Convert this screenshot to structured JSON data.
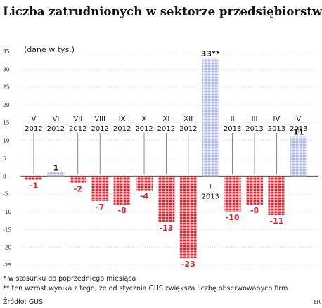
{
  "chart_data": {
    "type": "bar",
    "title": "Liczba zatrudnionych w sektorze przedsiębiorstw*",
    "subtitle": "(dane w tys.)",
    "ylim": [
      -25,
      35
    ],
    "yticks": [
      35,
      30,
      25,
      20,
      15,
      10,
      5,
      0,
      -5,
      -10,
      -15,
      -20,
      -25
    ],
    "grid": true,
    "categories": [
      {
        "month": "V",
        "year": "2012"
      },
      {
        "month": "VI",
        "year": "2012"
      },
      {
        "month": "VII",
        "year": "2012"
      },
      {
        "month": "VIII",
        "year": "2012"
      },
      {
        "month": "IX",
        "year": "2012"
      },
      {
        "month": "X",
        "year": "2012"
      },
      {
        "month": "XI",
        "year": "2012"
      },
      {
        "month": "XII",
        "year": "2012"
      },
      {
        "month": "I",
        "year": "2013"
      },
      {
        "month": "II",
        "year": "2013"
      },
      {
        "month": "III",
        "year": "2013"
      },
      {
        "month": "IV",
        "year": "2013"
      },
      {
        "month": "V",
        "year": "2013"
      }
    ],
    "values": [
      -1,
      1,
      -2,
      -7,
      -8,
      -4,
      -13,
      -23,
      33,
      -10,
      -8,
      -11,
      11
    ],
    "value_labels": [
      "-1",
      "1",
      "-2",
      "-7",
      "-8",
      "-4",
      "-13",
      "-23",
      "33**",
      "-10",
      "-8",
      "-11",
      "11"
    ],
    "colors": {
      "negative": "#d9232e",
      "positive": "#aab4e8",
      "label_negative": "#d9232e",
      "label_positive": "#111111"
    }
  },
  "footnotes": [
    "* w stosunku do poprzedniego miesiąca",
    "** ten wzrost wynika z tego, że od stycznia GUS zwiększa liczbę obserwowanych firm"
  ],
  "source": "Źródło: GUS",
  "credit": "ŁR"
}
